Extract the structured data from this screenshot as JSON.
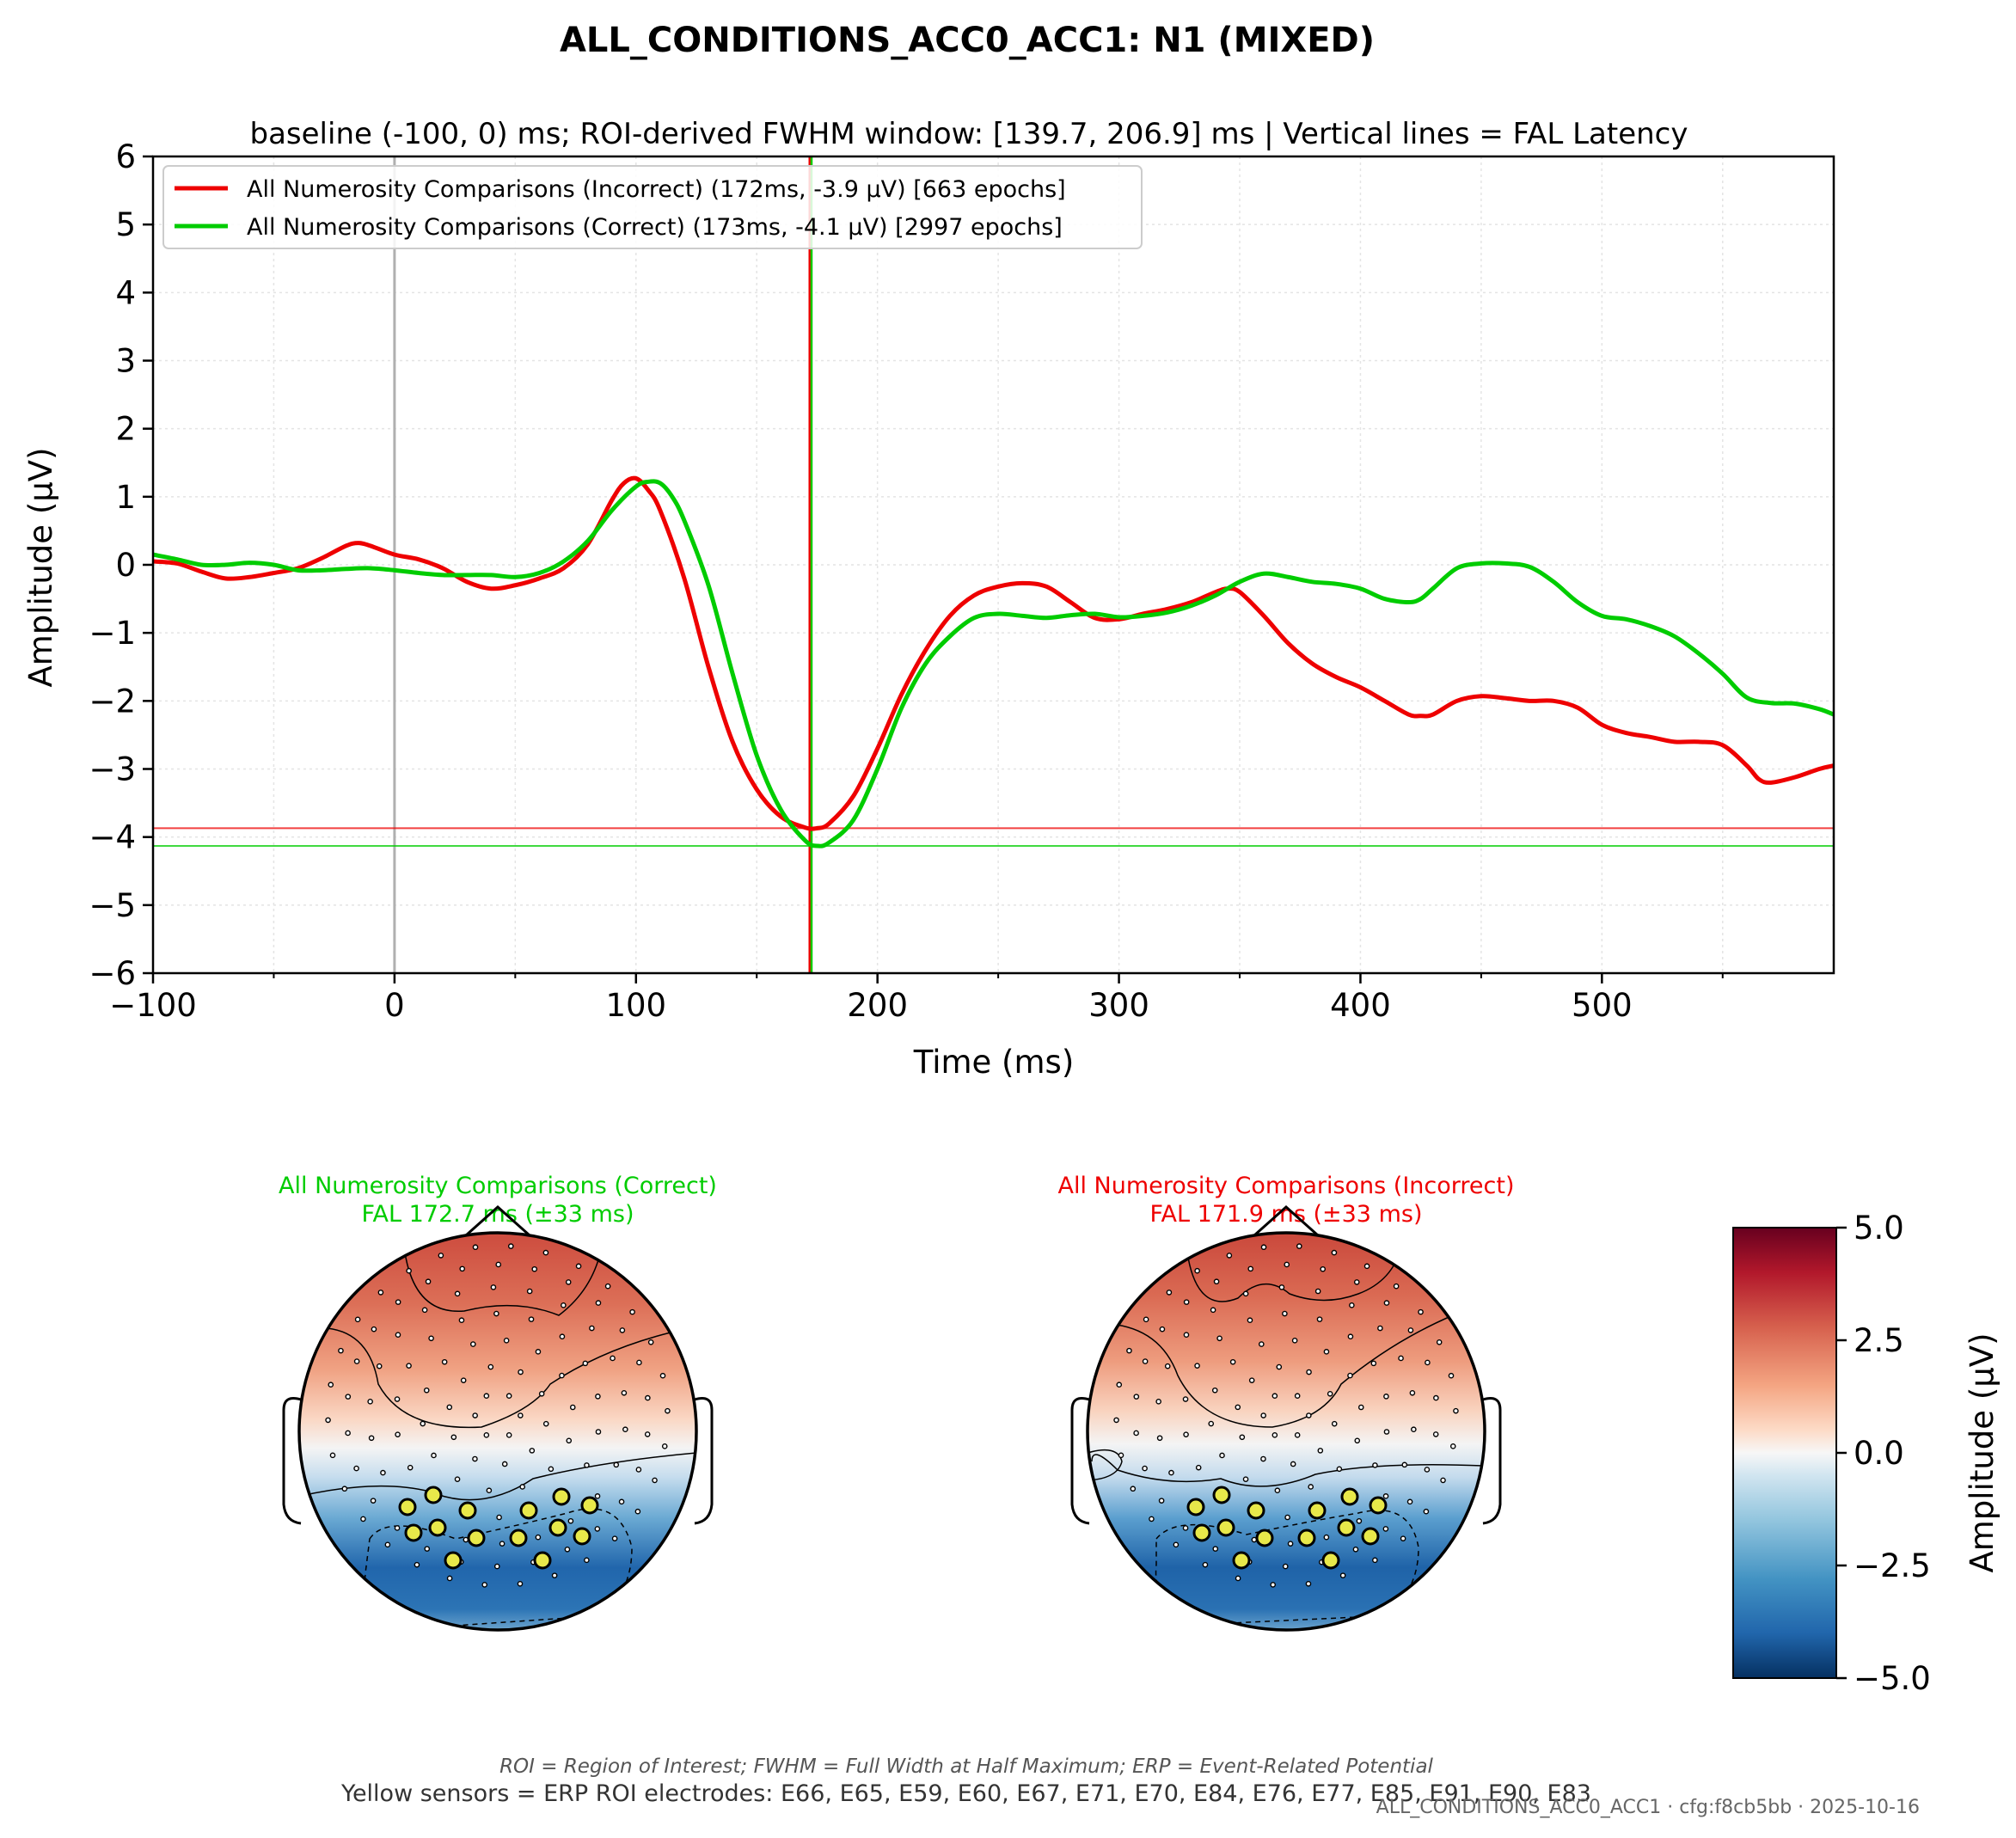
{
  "figure": {
    "title": "ALL_CONDITIONS_ACC0_ACC1: N1 (MIXED)",
    "subtitle": "baseline (-100, 0) ms; ROI-derived FWHM window: [139.7, 206.9] ms | Vertical lines = FAL Latency",
    "footer_note": "ROI = Region of Interest; FWHM = Full Width at Half Maximum; ERP = Event-Related Potential",
    "footer_roi": "Yellow sensors = ERP ROI electrodes: E66, E65, E59, E60, E67, E71, E70, E84, E76, E77, E85, E91, E90, E83",
    "footer_cfg": "ALL_CONDITIONS_ACC0_ACC1 · cfg:f8cb5bb · 2025-10-16"
  },
  "colors": {
    "incorrect": "#ee0000",
    "correct": "#00cc00",
    "zero_line": "#b0b0b0",
    "grid": "#e4e4e4",
    "roi_sensor": "#e8e84a"
  },
  "chart_data": [
    {
      "type": "line",
      "xlabel": "Time (ms)",
      "ylabel": "Amplitude (µV)",
      "xlim": [
        -100,
        596
      ],
      "ylim": [
        -6,
        6
      ],
      "xticks": [
        -100,
        0,
        100,
        200,
        300,
        400,
        500
      ],
      "xtick_labels": [
        "−100",
        "0",
        "100",
        "200",
        "300",
        "400",
        "500"
      ],
      "yticks": [
        6,
        5,
        4,
        3,
        2,
        1,
        0,
        -1,
        -2,
        -3,
        -4,
        -5,
        -6
      ],
      "ytick_labels": [
        "6",
        "5",
        "4",
        "3",
        "2",
        "1",
        "0",
        "−1",
        "−2",
        "−3",
        "−4",
        "−5",
        "−6"
      ],
      "grid": true,
      "legend_position": "top-left",
      "series": [
        {
          "name": "All Numerosity Comparisons (Incorrect) (172ms, -3.9 µV) [663 epochs]",
          "color_key": "incorrect",
          "fal_latency": 171.9,
          "peak_amplitude": -3.87,
          "x": [
            -100,
            -90,
            -80,
            -70,
            -60,
            -50,
            -40,
            -30,
            -20,
            -15,
            -10,
            0,
            10,
            20,
            30,
            40,
            50,
            60,
            70,
            80,
            90,
            95,
            100,
            105,
            110,
            120,
            130,
            140,
            150,
            160,
            170,
            175,
            180,
            190,
            200,
            210,
            220,
            230,
            240,
            250,
            260,
            270,
            280,
            290,
            300,
            310,
            320,
            330,
            340,
            345,
            350,
            360,
            370,
            380,
            390,
            400,
            410,
            420,
            425,
            430,
            440,
            450,
            460,
            470,
            480,
            490,
            500,
            510,
            520,
            530,
            540,
            550,
            560,
            565,
            570,
            580,
            590,
            596
          ],
          "y": [
            0.05,
            0.02,
            -0.1,
            -0.2,
            -0.18,
            -0.12,
            -0.05,
            0.1,
            0.28,
            0.32,
            0.28,
            0.15,
            0.08,
            -0.05,
            -0.25,
            -0.35,
            -0.3,
            -0.2,
            -0.05,
            0.3,
            0.95,
            1.2,
            1.27,
            1.1,
            0.8,
            -0.2,
            -1.5,
            -2.6,
            -3.3,
            -3.7,
            -3.86,
            -3.87,
            -3.8,
            -3.4,
            -2.7,
            -1.9,
            -1.25,
            -0.75,
            -0.45,
            -0.32,
            -0.27,
            -0.32,
            -0.55,
            -0.78,
            -0.8,
            -0.72,
            -0.65,
            -0.55,
            -0.4,
            -0.35,
            -0.4,
            -0.75,
            -1.15,
            -1.45,
            -1.65,
            -1.8,
            -2.0,
            -2.2,
            -2.22,
            -2.2,
            -2.0,
            -1.93,
            -1.96,
            -2.0,
            -2.0,
            -2.1,
            -2.35,
            -2.47,
            -2.53,
            -2.6,
            -2.6,
            -2.65,
            -2.95,
            -3.15,
            -3.2,
            -3.12,
            -3.0,
            -2.95
          ]
        },
        {
          "name": "All Numerosity Comparisons (Correct) (173ms, -4.1 µV) [2997 epochs]",
          "color_key": "correct",
          "fal_latency": 172.7,
          "peak_amplitude": -4.13,
          "x": [
            -100,
            -90,
            -80,
            -70,
            -60,
            -50,
            -40,
            -30,
            -20,
            -10,
            0,
            10,
            20,
            30,
            40,
            50,
            60,
            70,
            80,
            90,
            100,
            105,
            110,
            115,
            120,
            130,
            140,
            150,
            160,
            170,
            175,
            180,
            190,
            200,
            210,
            220,
            230,
            240,
            250,
            260,
            270,
            280,
            290,
            300,
            310,
            320,
            330,
            340,
            350,
            360,
            370,
            380,
            390,
            400,
            410,
            420,
            425,
            430,
            440,
            450,
            460,
            470,
            480,
            490,
            500,
            510,
            520,
            530,
            540,
            550,
            560,
            570,
            580,
            590,
            596
          ],
          "y": [
            0.15,
            0.08,
            0.0,
            0.0,
            0.03,
            0.0,
            -0.08,
            -0.08,
            -0.06,
            -0.05,
            -0.08,
            -0.12,
            -0.15,
            -0.15,
            -0.15,
            -0.18,
            -0.12,
            0.05,
            0.35,
            0.8,
            1.15,
            1.22,
            1.2,
            1.0,
            0.65,
            -0.3,
            -1.6,
            -2.8,
            -3.6,
            -4.05,
            -4.13,
            -4.08,
            -3.75,
            -3.0,
            -2.1,
            -1.45,
            -1.05,
            -0.78,
            -0.72,
            -0.75,
            -0.78,
            -0.74,
            -0.72,
            -0.77,
            -0.75,
            -0.7,
            -0.6,
            -0.45,
            -0.25,
            -0.13,
            -0.18,
            -0.25,
            -0.28,
            -0.35,
            -0.5,
            -0.55,
            -0.5,
            -0.35,
            -0.05,
            0.02,
            0.02,
            -0.03,
            -0.25,
            -0.55,
            -0.75,
            -0.8,
            -0.9,
            -1.05,
            -1.3,
            -1.6,
            -1.95,
            -2.03,
            -2.04,
            -2.12,
            -2.2
          ]
        }
      ],
      "reference_lines": [
        {
          "orientation": "vertical",
          "x": 0,
          "color_key": "zero_line"
        },
        {
          "orientation": "vertical",
          "x": 171.9,
          "color_key": "incorrect"
        },
        {
          "orientation": "vertical",
          "x": 172.7,
          "color_key": "correct"
        },
        {
          "orientation": "horizontal",
          "y": -3.87,
          "color_key": "incorrect"
        },
        {
          "orientation": "horizontal",
          "y": -4.13,
          "color_key": "correct"
        }
      ]
    },
    {
      "type": "heatmap",
      "subtype": "topographic-map",
      "title": "All Numerosity Comparisons (Correct)\nFAL 172.7 ms (±33 ms)",
      "title_lines": [
        "All Numerosity Comparisons (Correct)",
        "FAL 172.7 ms (±33 ms)"
      ],
      "color_key": "correct",
      "roi_sensor_count": 14
    },
    {
      "type": "heatmap",
      "subtype": "topographic-map",
      "title": "All Numerosity Comparisons (Incorrect)\nFAL 171.9 ms (±33 ms)",
      "title_lines": [
        "All Numerosity Comparisons (Incorrect)",
        "FAL 171.9 ms (±33 ms)"
      ],
      "color_key": "incorrect",
      "roi_sensor_count": 14
    },
    {
      "type": "heatmap",
      "subtype": "colorbar",
      "label": "Amplitude (µV)",
      "range": [
        -5,
        5
      ],
      "ticks": [
        5.0,
        2.5,
        0.0,
        -2.5,
        -5.0
      ],
      "tick_labels": [
        "5.0",
        "2.5",
        "0.0",
        "−2.5",
        "−5.0"
      ],
      "colormap": "RdBu_r"
    }
  ]
}
